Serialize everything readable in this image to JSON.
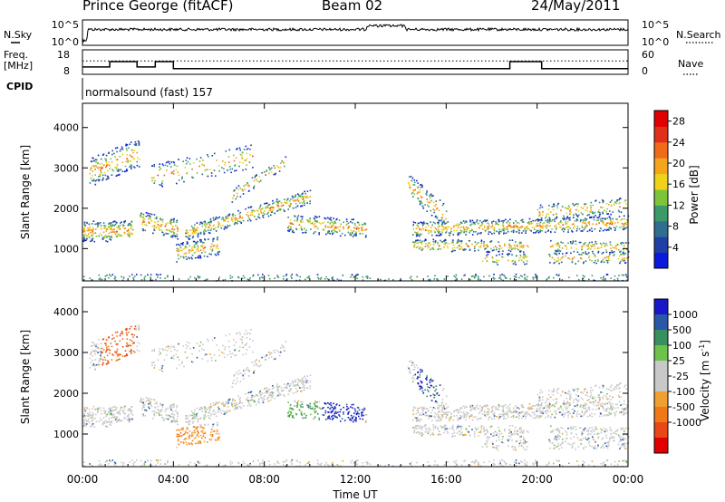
{
  "header": {
    "station": "Prince George (fitACF)",
    "beam": "Beam 02",
    "date": "24/May/2011"
  },
  "chart_data": [
    {
      "type": "line",
      "panel": "sky-noise / search-noise",
      "left_label": "N.Sky",
      "right_label": "N.Search",
      "left_ticks": [
        "10^5",
        "10^0"
      ],
      "right_ticks": [
        "10^5",
        "10^0"
      ],
      "scale": "log",
      "level_note": "noise trace stays near the top of the panel (~10^4.6) all day"
    },
    {
      "type": "line",
      "panel": "frequency / nave",
      "left_label": "Freq.",
      "left_unit": "[MHz]",
      "right_label": "Nave",
      "left_ticks": [
        "18",
        "8"
      ],
      "right_ticks": [
        "60",
        "0"
      ],
      "ylim_left": [
        8,
        18
      ],
      "ylim_right": [
        0,
        60
      ],
      "freq_segments": [
        {
          "x0": 0.0,
          "x1": 1.2,
          "y": 11.0
        },
        {
          "x0": 1.2,
          "x1": 2.4,
          "y": 13.2
        },
        {
          "x0": 2.4,
          "x1": 3.2,
          "y": 11.0
        },
        {
          "x0": 3.2,
          "x1": 4.0,
          "y": 13.2
        },
        {
          "x0": 4.0,
          "x1": 18.8,
          "y": 10.3
        },
        {
          "x0": 18.8,
          "x1": 20.2,
          "y": 13.2
        },
        {
          "x0": 20.2,
          "x1": 24.0,
          "y": 10.3
        }
      ],
      "nave_level": 33
    },
    {
      "type": "text",
      "panel": "CPID",
      "label": "CPID",
      "program": "normalsound (fast) 157"
    },
    {
      "type": "heatmap",
      "panel": "power",
      "ylabel": "Slant Range [km]",
      "yticks": [
        1000,
        2000,
        3000,
        4000
      ],
      "ylim": [
        200,
        4600
      ],
      "xlim": [
        0,
        24
      ],
      "colorbar_label": "Power [dB]",
      "colorbar_ticks": [
        4,
        8,
        12,
        16,
        20,
        24,
        28
      ],
      "clim": [
        0,
        30
      ]
    },
    {
      "type": "heatmap",
      "panel": "velocity",
      "ylabel": "Slant Range [km]",
      "yticks": [
        1000,
        2000,
        3000,
        4000
      ],
      "ylim": [
        200,
        4600
      ],
      "xlim": [
        0,
        24
      ],
      "xlabel": "Time UT",
      "xticks": [
        "00:00",
        "04:00",
        "08:00",
        "12:00",
        "16:00",
        "20:00",
        "00:00"
      ],
      "colorbar_label": "Velocity [m s",
      "colorbar_unit_exp": "-1",
      "colorbar_unit_close": "]",
      "colorbar_ticks": [
        "1000",
        "500",
        "100",
        "25",
        "-25",
        "-100",
        "-500",
        "-1000"
      ]
    }
  ]
}
